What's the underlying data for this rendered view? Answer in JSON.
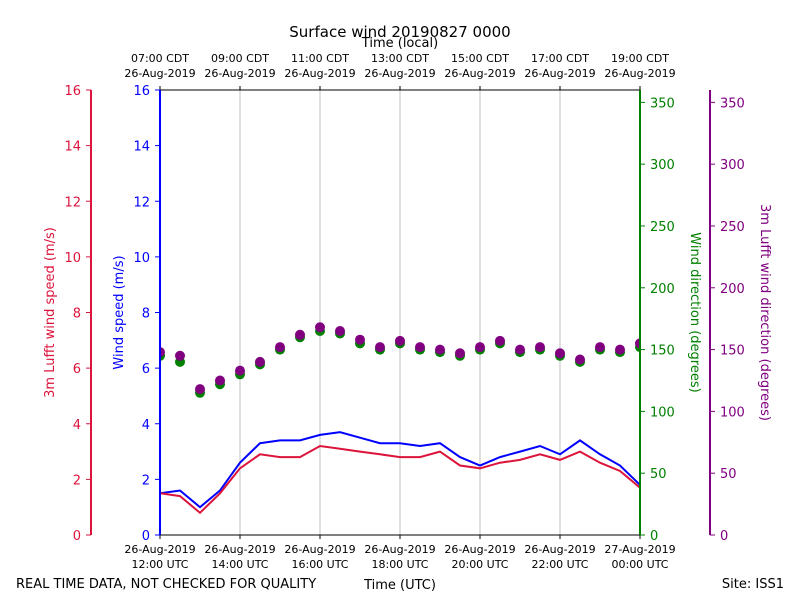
{
  "chart_data": {
    "type": "line",
    "title": "Surface wind 20190827 0000",
    "top_axis_label": "Time (local)",
    "top_ticks": [
      {
        "line1": "07:00 CDT",
        "line2": "26-Aug-2019"
      },
      {
        "line1": "09:00 CDT",
        "line2": "26-Aug-2019"
      },
      {
        "line1": "11:00 CDT",
        "line2": "26-Aug-2019"
      },
      {
        "line1": "13:00 CDT",
        "line2": "26-Aug-2019"
      },
      {
        "line1": "15:00 CDT",
        "line2": "26-Aug-2019"
      },
      {
        "line1": "17:00 CDT",
        "line2": "26-Aug-2019"
      },
      {
        "line1": "19:00 CDT",
        "line2": "26-Aug-2019"
      }
    ],
    "xlabel": "Time (UTC)",
    "x_ticks": [
      {
        "line1": "26-Aug-2019",
        "line2": "12:00 UTC"
      },
      {
        "line1": "26-Aug-2019",
        "line2": "14:00 UTC"
      },
      {
        "line1": "26-Aug-2019",
        "line2": "16:00 UTC"
      },
      {
        "line1": "26-Aug-2019",
        "line2": "18:00 UTC"
      },
      {
        "line1": "26-Aug-2019",
        "line2": "20:00 UTC"
      },
      {
        "line1": "26-Aug-2019",
        "line2": "22:00 UTC"
      },
      {
        "line1": "27-Aug-2019",
        "line2": "00:00 UTC"
      }
    ],
    "x_range_hours": [
      0,
      12
    ],
    "grid": "vertical",
    "axes": {
      "luft_speed": {
        "label": "3m Lufft wind speed (m/s)",
        "ylim": [
          0,
          16
        ],
        "ticks": [
          "0",
          "2",
          "4",
          "6",
          "8",
          "10",
          "12",
          "14",
          "16"
        ],
        "color": "#dc143c"
      },
      "speed": {
        "label": "Wind speed (m/s)",
        "ylim": [
          0,
          16
        ],
        "ticks": [
          "0",
          "2",
          "4",
          "6",
          "8",
          "10",
          "12",
          "14",
          "16"
        ],
        "color": "#0000ff"
      },
      "direction": {
        "label": "Wind direction (degrees)",
        "ylim": [
          0,
          360
        ],
        "ticks": [
          "0",
          "50",
          "100",
          "150",
          "200",
          "250",
          "300",
          "350"
        ],
        "color": "#008000"
      },
      "luft_direction": {
        "label": "3m Lufft wind direction (degrees)",
        "ylim": [
          0,
          360
        ],
        "ticks": [
          "0",
          "50",
          "100",
          "150",
          "200",
          "250",
          "300",
          "350"
        ],
        "color": "#800080"
      }
    },
    "series": [
      {
        "name": "Wind speed",
        "kind": "line",
        "axis": "speed",
        "color": "#0000ff",
        "hours": [
          0,
          0.5,
          1,
          1.5,
          2,
          2.5,
          3,
          3.5,
          4,
          4.5,
          5,
          5.5,
          6,
          6.5,
          7,
          7.5,
          8,
          8.5,
          9,
          9.5,
          10,
          10.5,
          11,
          11.5,
          12
        ],
        "values": [
          1.5,
          1.6,
          1.0,
          1.6,
          2.6,
          3.3,
          3.4,
          3.4,
          3.6,
          3.7,
          3.5,
          3.3,
          3.3,
          3.2,
          3.3,
          2.8,
          2.5,
          2.8,
          3.0,
          3.2,
          2.9,
          3.4,
          2.9,
          2.5,
          1.8
        ]
      },
      {
        "name": "3m Lufft wind speed",
        "kind": "line",
        "axis": "luft_speed",
        "color": "#dc143c",
        "hours": [
          0,
          0.5,
          1,
          1.5,
          2,
          2.5,
          3,
          3.5,
          4,
          4.5,
          5,
          5.5,
          6,
          6.5,
          7,
          7.5,
          8,
          8.5,
          9,
          9.5,
          10,
          10.5,
          11,
          11.5,
          12
        ],
        "values": [
          1.5,
          1.4,
          0.8,
          1.5,
          2.4,
          2.9,
          2.8,
          2.8,
          3.2,
          3.1,
          3.0,
          2.9,
          2.8,
          2.8,
          3.0,
          2.5,
          2.4,
          2.6,
          2.7,
          2.9,
          2.7,
          3.0,
          2.6,
          2.3,
          1.7
        ]
      },
      {
        "name": "Wind direction",
        "kind": "scatter",
        "axis": "direction",
        "color": "#008000",
        "hours": [
          0,
          0.5,
          1,
          1.5,
          2,
          2.5,
          3,
          3.5,
          4,
          4.5,
          5,
          5.5,
          6,
          6.5,
          7,
          7.5,
          8,
          8.5,
          9,
          9.5,
          10,
          10.5,
          11,
          11.5,
          12
        ],
        "values": [
          145,
          140,
          115,
          122,
          130,
          138,
          150,
          160,
          165,
          163,
          155,
          150,
          155,
          150,
          148,
          145,
          150,
          155,
          148,
          150,
          145,
          140,
          150,
          148,
          152
        ]
      },
      {
        "name": "3m Lufft wind direction",
        "kind": "scatter",
        "axis": "luft_direction",
        "color": "#800080",
        "hours": [
          0,
          0.5,
          1,
          1.5,
          2,
          2.5,
          3,
          3.5,
          4,
          4.5,
          5,
          5.5,
          6,
          6.5,
          7,
          7.5,
          8,
          8.5,
          9,
          9.5,
          10,
          10.5,
          11,
          11.5,
          12
        ],
        "values": [
          148,
          145,
          118,
          125,
          133,
          140,
          152,
          162,
          168,
          165,
          158,
          152,
          157,
          152,
          150,
          147,
          152,
          157,
          150,
          152,
          147,
          142,
          152,
          150,
          155
        ]
      }
    ]
  },
  "footer": {
    "quality_note": "REAL TIME DATA, NOT CHECKED FOR QUALITY",
    "site": "Site: ISS1"
  }
}
